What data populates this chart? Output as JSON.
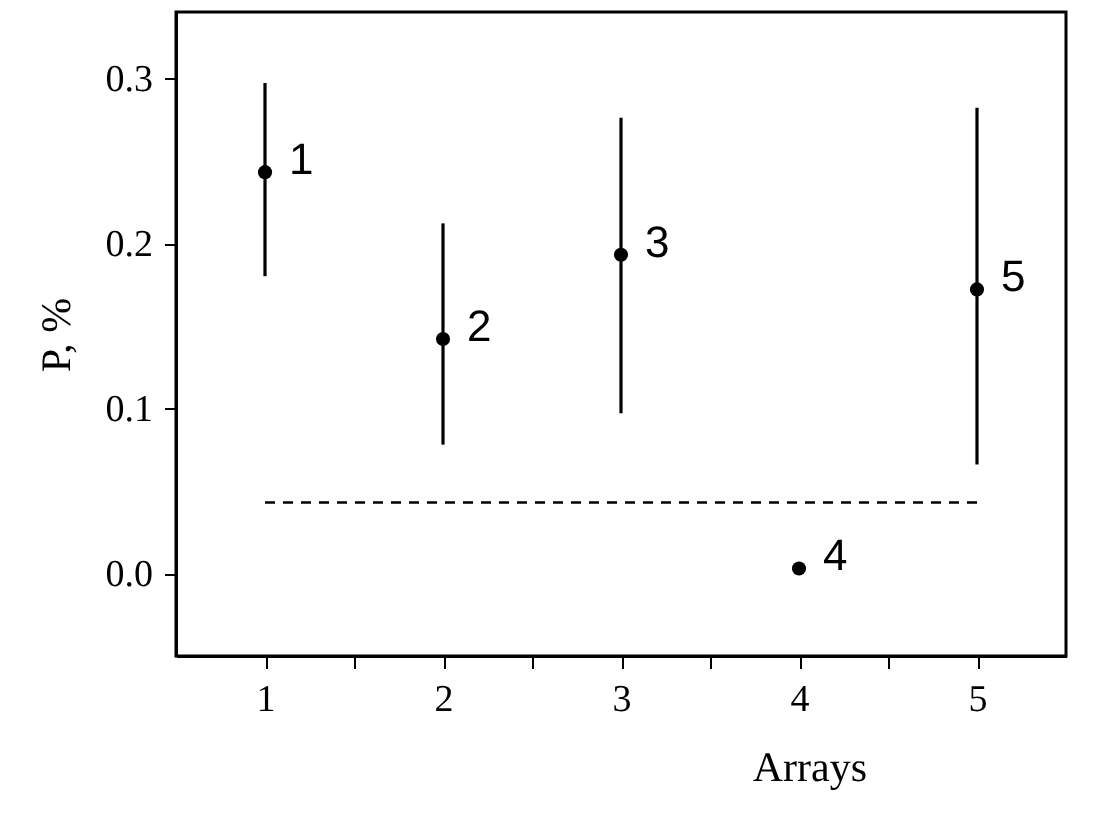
{
  "chart_data": {
    "type": "scatter",
    "xlabel": "Arrays",
    "ylabel": "P, %",
    "xlim": [
      0.5,
      5.5
    ],
    "xticks": [
      1,
      {
        "value": 1.5,
        "label": null
      },
      2,
      {
        "value": 2.5,
        "label": null
      },
      3,
      {
        "value": 3.5,
        "label": null
      },
      4,
      {
        "value": 4.5,
        "label": null
      },
      5
    ],
    "ylim": [
      -0.05,
      0.34
    ],
    "yticks": [
      {
        "value": 0,
        "label": "0.0"
      },
      0.1,
      0.2,
      0.3
    ],
    "grid": false,
    "series": [
      {
        "color": "#000000",
        "marker": "circle",
        "x": [
          1,
          2,
          3,
          4,
          5
        ],
        "values": [
          0.243,
          0.142,
          0.193,
          0.003,
          0.172
        ],
        "errors": [
          [
            0.18,
            0.297
          ],
          [
            0.078,
            0.212
          ],
          [
            0.097,
            0.276
          ],
          null,
          [
            0.066,
            0.282
          ]
        ]
      },
      {
        "type": "line",
        "color": "#000000",
        "line_style": "dashed",
        "x": [
          1,
          5
        ],
        "values": [
          0.043,
          0.043
        ]
      }
    ],
    "annotations": [
      {
        "text": "1",
        "x": 1,
        "y": 0.243
      },
      {
        "text": "2",
        "x": 2,
        "y": 0.142
      },
      {
        "text": "3",
        "x": 3,
        "y": 0.193
      },
      {
        "text": "4",
        "x": 4,
        "y": 0.003
      },
      {
        "text": "5",
        "x": 5,
        "y": 0.172
      }
    ]
  }
}
